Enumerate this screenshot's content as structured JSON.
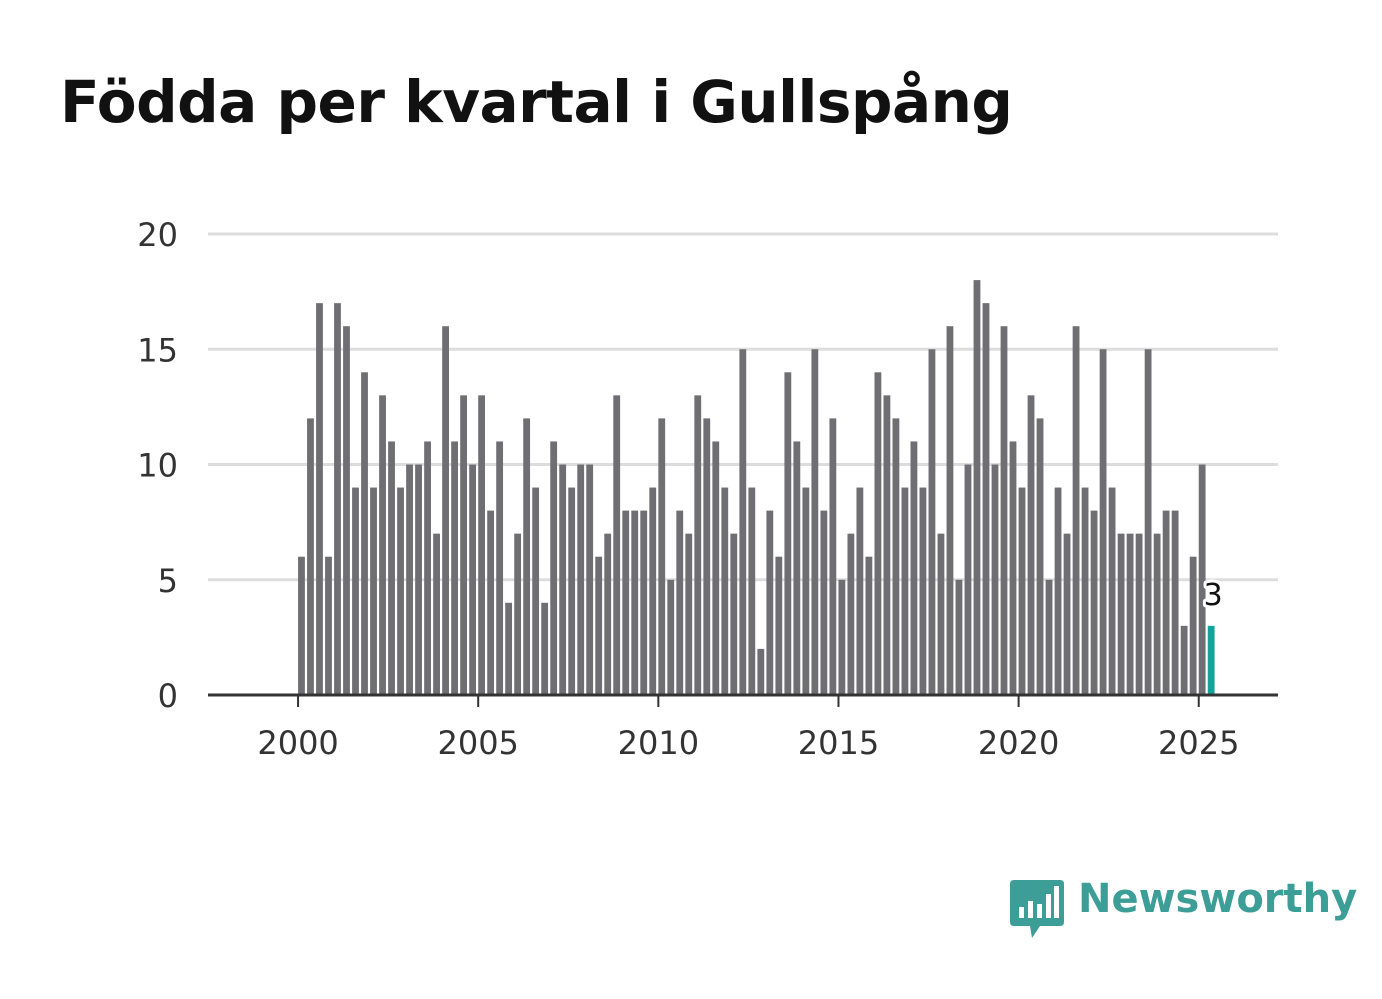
{
  "title": "Födda per kvartal i Gullspång",
  "brand": {
    "name": "Newsworthy",
    "color": "#3d9e97",
    "icon": "bar-chart-speech-bubble-icon"
  },
  "colors": {
    "bar": "#6f6f73",
    "highlight": "#14a39a",
    "grid": "#dddddd",
    "axis": "#333333"
  },
  "chart_data": {
    "type": "bar",
    "title": "Födda per kvartal i Gullspång",
    "xlabel": "",
    "ylabel": "",
    "ylim": [
      0,
      20
    ],
    "xlim": [
      1997.5,
      2027.2
    ],
    "yticks": [
      "0",
      "5",
      "10",
      "15",
      "20"
    ],
    "xticks": [
      "2000",
      "2005",
      "2010",
      "2015",
      "2020",
      "2025"
    ],
    "start": "2000 Q1",
    "values": [
      6,
      12,
      17,
      6,
      17,
      16,
      9,
      14,
      9,
      13,
      11,
      9,
      10,
      10,
      11,
      7,
      16,
      11,
      13,
      10,
      13,
      8,
      11,
      4,
      7,
      12,
      9,
      4,
      11,
      10,
      9,
      10,
      10,
      6,
      7,
      13,
      8,
      8,
      8,
      9,
      12,
      5,
      8,
      7,
      13,
      12,
      11,
      9,
      7,
      15,
      9,
      2,
      8,
      6,
      14,
      11,
      9,
      15,
      8,
      12,
      5,
      7,
      9,
      6,
      14,
      13,
      12,
      9,
      11,
      9,
      15,
      7,
      16,
      5,
      10,
      18,
      17,
      10,
      16,
      11,
      9,
      13,
      12,
      5,
      9,
      7,
      16,
      9,
      8,
      15,
      9,
      7,
      7,
      7,
      15,
      7,
      8,
      8,
      3,
      6,
      10,
      3
    ],
    "highlight_last": true,
    "last_value_label": "3",
    "grid": true,
    "legend": "none"
  }
}
